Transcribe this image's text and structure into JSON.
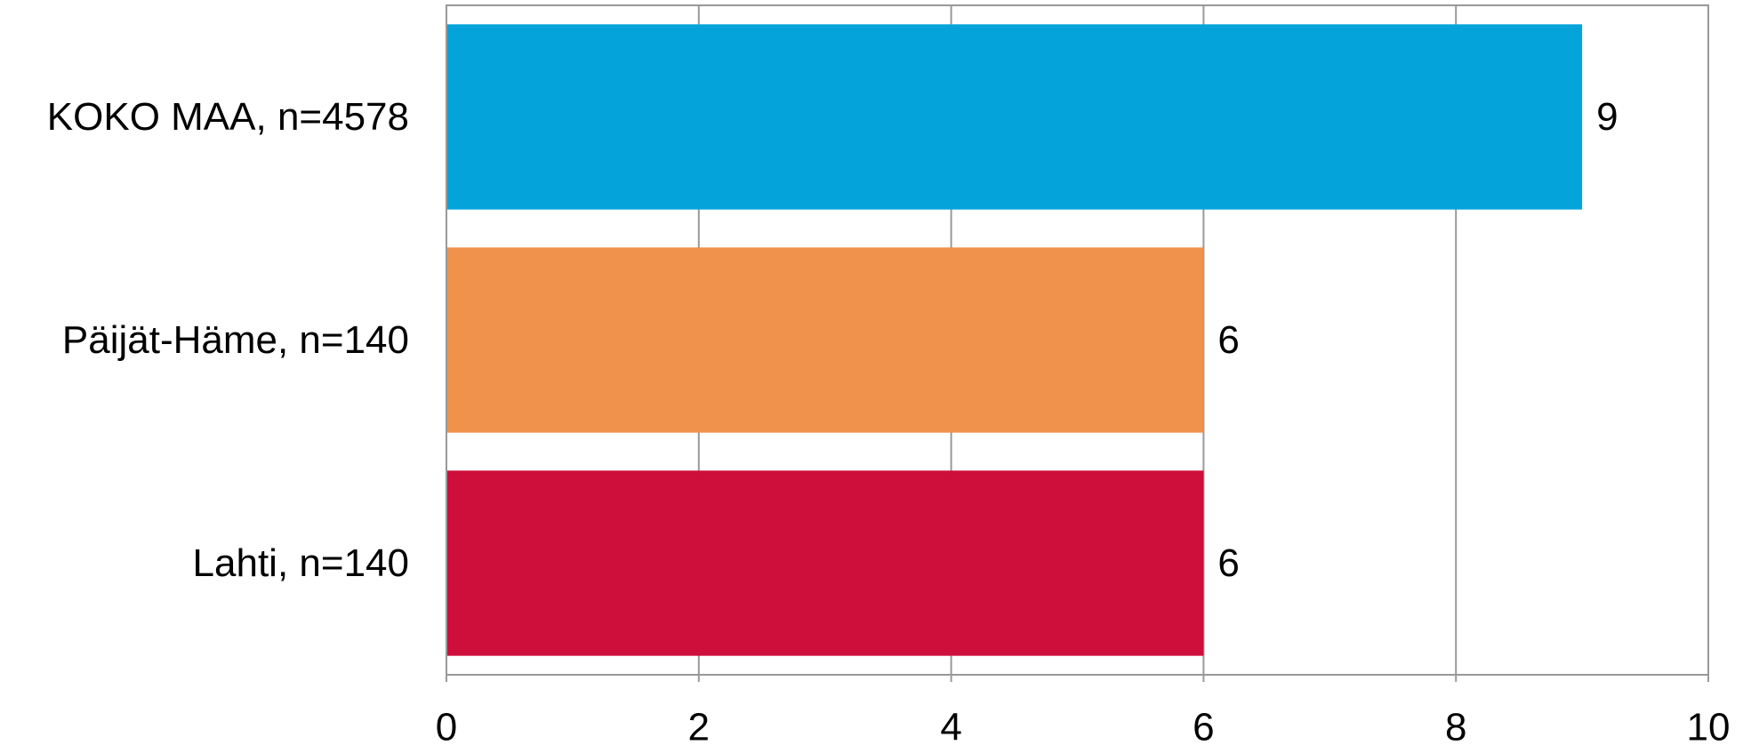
{
  "chart_data": {
    "type": "bar",
    "orientation": "horizontal",
    "categories": [
      "KOKO MAA, n=4578",
      "Päijät-Häme, n=140",
      "Lahti, n=140"
    ],
    "values": [
      9,
      6,
      6
    ],
    "data_labels": [
      "9",
      "6",
      "6"
    ],
    "bar_colors": [
      "#04a4db",
      "#f0914c",
      "#ce0e3b"
    ],
    "xlim": [
      0,
      10
    ],
    "x_ticks": [
      0,
      2,
      4,
      6,
      8,
      10
    ],
    "x_tick_labels": [
      "0",
      "2",
      "4",
      "6",
      "8",
      "10"
    ],
    "title": "",
    "xlabel": "",
    "ylabel": "",
    "grid": true,
    "legend": "none"
  }
}
